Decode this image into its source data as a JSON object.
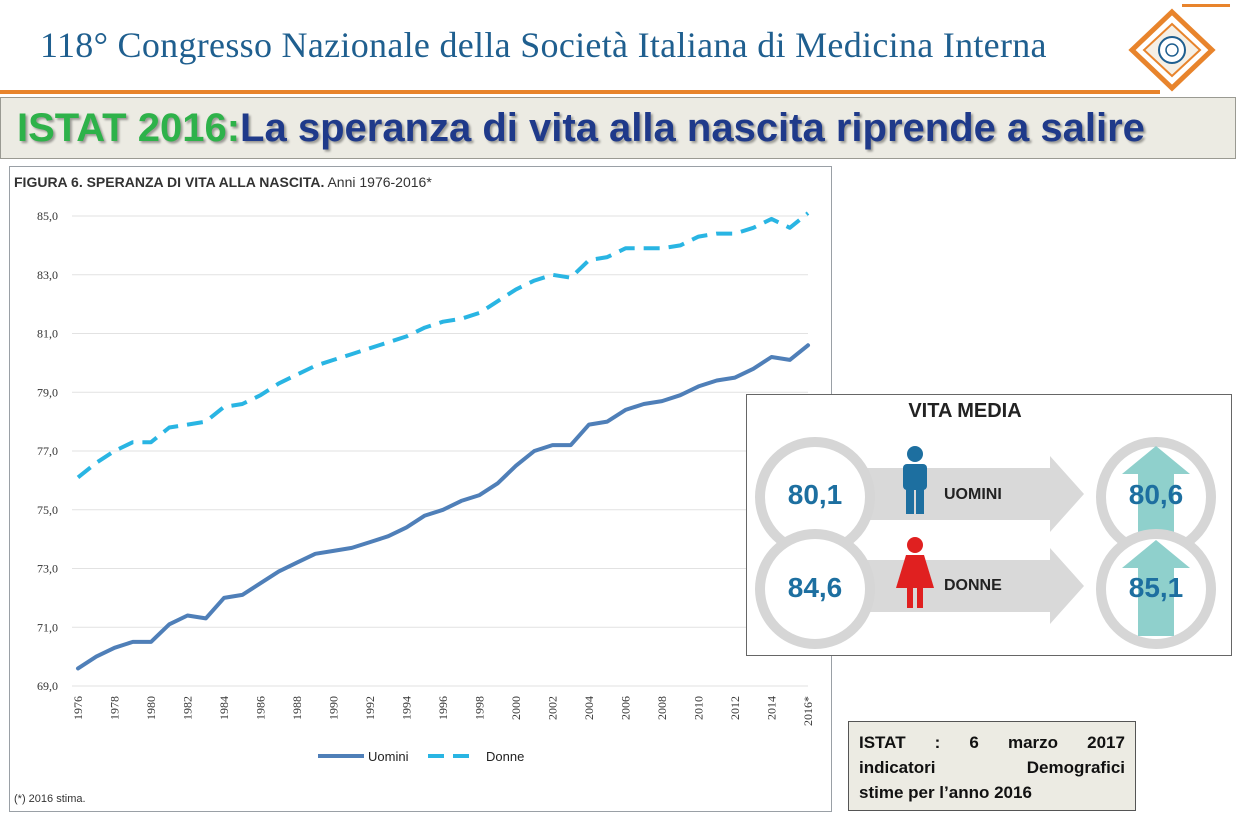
{
  "header": {
    "title": "118° Congresso Nazionale della Società Italiana di Medicina Interna"
  },
  "banner": {
    "prefix": "ISTAT 2016:",
    "text": "La speranza di vita alla nascita riprende a salire"
  },
  "chart_data": {
    "type": "line",
    "title_bold": "FIGURA 6. SPERANZA DI VITA ALLA NASCITA.",
    "title_rest": "Anni 1976-2016*",
    "footnote": "(*) 2016 stima.",
    "x": [
      1976,
      1977,
      1978,
      1979,
      1980,
      1981,
      1982,
      1983,
      1984,
      1985,
      1986,
      1987,
      1988,
      1989,
      1990,
      1991,
      1992,
      1993,
      1994,
      1995,
      1996,
      1997,
      1998,
      1999,
      2000,
      2001,
      2002,
      2003,
      2004,
      2005,
      2006,
      2007,
      2008,
      2009,
      2010,
      2011,
      2012,
      2013,
      2014,
      2015,
      2016
    ],
    "x_tick_labels": [
      "1976",
      "1978",
      "1980",
      "1982",
      "1984",
      "1986",
      "1988",
      "1990",
      "1992",
      "1994",
      "1996",
      "1998",
      "2000",
      "2002",
      "2004",
      "2006",
      "2008",
      "2010",
      "2012",
      "2014",
      "2016*"
    ],
    "y_ticks": [
      "69,0",
      "71,0",
      "73,0",
      "75,0",
      "77,0",
      "79,0",
      "81,0",
      "83,0",
      "85,0"
    ],
    "ylim": [
      69,
      85
    ],
    "grid": "horizontal",
    "series": [
      {
        "name": "Uomini",
        "style": "solid",
        "color": "#4f7fb8",
        "values": [
          69.6,
          70.0,
          70.3,
          70.5,
          70.5,
          71.1,
          71.4,
          71.3,
          72.0,
          72.1,
          72.5,
          72.9,
          73.2,
          73.5,
          73.6,
          73.7,
          73.9,
          74.1,
          74.4,
          74.8,
          75.0,
          75.3,
          75.5,
          75.9,
          76.5,
          77.0,
          77.2,
          77.2,
          77.9,
          78.0,
          78.4,
          78.6,
          78.7,
          78.9,
          79.2,
          79.4,
          79.5,
          79.8,
          80.2,
          80.1,
          80.6
        ]
      },
      {
        "name": "Donne",
        "style": "dashed",
        "color": "#29b5e3",
        "values": [
          76.1,
          76.6,
          77.0,
          77.3,
          77.3,
          77.8,
          77.9,
          78.0,
          78.5,
          78.6,
          78.9,
          79.3,
          79.6,
          79.9,
          80.1,
          80.3,
          80.5,
          80.7,
          80.9,
          81.2,
          81.4,
          81.5,
          81.7,
          82.1,
          82.5,
          82.8,
          83.0,
          82.9,
          83.5,
          83.6,
          83.9,
          83.9,
          83.9,
          84.0,
          84.3,
          84.4,
          84.4,
          84.6,
          84.9,
          84.6,
          85.1
        ]
      }
    ],
    "legend": [
      "Uomini",
      "Donne"
    ]
  },
  "info": {
    "title": "VITA MEDIA",
    "men": {
      "label": "UOMINI",
      "before": "80,1",
      "after": "80,6"
    },
    "women": {
      "label": "DONNE",
      "before": "84,6",
      "after": "85,1"
    }
  },
  "source": {
    "line1_words": [
      "ISTAT",
      ":",
      "6",
      "marzo",
      "2017"
    ],
    "line2_words": [
      "indicatori",
      "Demografici"
    ],
    "line3": "stime per l’anno 2016"
  },
  "colors": {
    "accent_orange": "#e8842c",
    "header_blue": "#1f5f8f",
    "green": "#2eb24a",
    "navy": "#1f3a8a",
    "man": "#1d6fa0",
    "woman": "#e02020",
    "arrow_teal": "#8fd0cc"
  }
}
